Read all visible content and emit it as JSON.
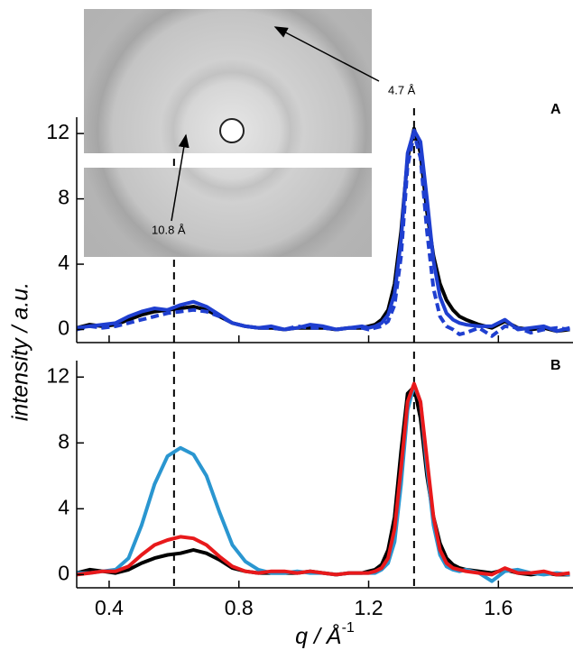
{
  "chart_data": [
    {
      "type": "line",
      "panel_label": "A",
      "ylabel": "intensity / a.u.",
      "annotations": [
        "4.7 Å",
        "10.8 Å"
      ],
      "x": [
        0.3,
        0.34,
        0.38,
        0.42,
        0.46,
        0.5,
        0.54,
        0.58,
        0.62,
        0.66,
        0.7,
        0.74,
        0.78,
        0.82,
        0.86,
        0.9,
        0.94,
        0.98,
        1.02,
        1.06,
        1.1,
        1.14,
        1.18,
        1.2,
        1.22,
        1.24,
        1.26,
        1.28,
        1.3,
        1.32,
        1.34,
        1.36,
        1.38,
        1.4,
        1.42,
        1.44,
        1.46,
        1.48,
        1.5,
        1.54,
        1.58,
        1.62,
        1.66,
        1.7,
        1.74,
        1.78,
        1.82
      ],
      "series": [
        {
          "color": "#000000",
          "dashed": false,
          "values": [
            0.1,
            0.3,
            0.2,
            0.3,
            0.6,
            0.9,
            1.1,
            1.2,
            1.3,
            1.4,
            1.2,
            0.8,
            0.4,
            0.2,
            0.1,
            0.1,
            0.0,
            0.1,
            0.1,
            0.1,
            0.0,
            0.1,
            0.1,
            0.2,
            0.3,
            0.6,
            1.2,
            2.8,
            6.0,
            10.5,
            12.3,
            10.8,
            7.2,
            4.5,
            2.8,
            1.8,
            1.2,
            0.8,
            0.6,
            0.3,
            0.1,
            0.5,
            0.1,
            0.0,
            0.1,
            -0.1,
            0.0
          ]
        },
        {
          "color": "#1f3fd0",
          "dashed": false,
          "values": [
            0.1,
            0.2,
            0.3,
            0.4,
            0.8,
            1.1,
            1.3,
            1.2,
            1.5,
            1.7,
            1.4,
            0.9,
            0.4,
            0.2,
            0.1,
            0.2,
            0.0,
            0.1,
            0.3,
            0.2,
            0.0,
            0.1,
            0.2,
            0.1,
            0.2,
            0.4,
            0.9,
            2.2,
            5.5,
            10.8,
            12.2,
            11.5,
            8.0,
            4.2,
            2.0,
            1.0,
            0.6,
            0.4,
            0.3,
            0.2,
            0.2,
            0.6,
            0.0,
            0.1,
            0.2,
            -0.1,
            0.1
          ]
        },
        {
          "color": "#1f3fd0",
          "dashed": true,
          "values": [
            0.0,
            0.2,
            0.1,
            0.2,
            0.4,
            0.6,
            0.8,
            1.0,
            1.1,
            1.2,
            1.1,
            0.8,
            0.4,
            0.2,
            0.1,
            0.1,
            0.0,
            0.2,
            0.1,
            0.1,
            0.0,
            0.1,
            0.1,
            0.0,
            0.1,
            0.2,
            0.5,
            1.5,
            4.5,
            10.0,
            12.0,
            10.5,
            6.0,
            2.5,
            0.8,
            0.2,
            0.0,
            -0.3,
            -0.2,
            0.1,
            -0.4,
            0.2,
            0.1,
            -0.2,
            0.0,
            0.1,
            0.0
          ]
        }
      ],
      "reference_lines": [
        0.6,
        1.34
      ],
      "xlim": [
        0.3,
        1.83
      ],
      "xticks": [
        0.4,
        0.8,
        1.2,
        1.6
      ],
      "ylim": [
        -0.8,
        13
      ],
      "yticks": [
        0,
        4,
        8,
        12
      ]
    },
    {
      "type": "line",
      "panel_label": "B",
      "xlabel": "q / Å",
      "xlabel_superscript": "-1",
      "x": [
        0.3,
        0.34,
        0.38,
        0.42,
        0.46,
        0.5,
        0.54,
        0.58,
        0.62,
        0.66,
        0.7,
        0.74,
        0.78,
        0.82,
        0.86,
        0.9,
        0.94,
        0.98,
        1.02,
        1.06,
        1.1,
        1.14,
        1.18,
        1.2,
        1.22,
        1.24,
        1.26,
        1.28,
        1.3,
        1.32,
        1.34,
        1.36,
        1.38,
        1.4,
        1.42,
        1.44,
        1.46,
        1.48,
        1.5,
        1.54,
        1.58,
        1.62,
        1.66,
        1.7,
        1.74,
        1.78,
        1.82
      ],
      "series": [
        {
          "color": "#000000",
          "dashed": false,
          "values": [
            0.1,
            0.3,
            0.2,
            0.1,
            0.3,
            0.7,
            1.0,
            1.2,
            1.3,
            1.5,
            1.3,
            0.9,
            0.4,
            0.2,
            0.1,
            0.1,
            0.1,
            0.1,
            0.2,
            0.1,
            0.0,
            0.1,
            0.1,
            0.2,
            0.3,
            0.6,
            1.5,
            3.5,
            7.5,
            11.0,
            11.4,
            9.5,
            6.0,
            3.5,
            1.9,
            1.0,
            0.6,
            0.4,
            0.3,
            0.2,
            0.1,
            0.3,
            0.1,
            0.0,
            0.1,
            0.0,
            0.0
          ]
        },
        {
          "color": "#2a96d0",
          "dashed": false,
          "values": [
            0.1,
            0.1,
            0.2,
            0.3,
            1.0,
            3.0,
            5.5,
            7.2,
            7.7,
            7.3,
            6.0,
            3.8,
            1.8,
            0.8,
            0.3,
            0.1,
            0.1,
            0.2,
            0.1,
            0.1,
            0.0,
            0.1,
            0.1,
            0.1,
            0.1,
            0.3,
            0.7,
            2.0,
            5.5,
            10.0,
            11.5,
            10.5,
            6.5,
            3.0,
            1.2,
            0.5,
            0.3,
            0.2,
            0.3,
            0.1,
            -0.4,
            0.2,
            0.3,
            0.1,
            0.0,
            0.1,
            0.0
          ]
        },
        {
          "color": "#e8191b",
          "dashed": false,
          "values": [
            0.0,
            0.1,
            0.2,
            0.2,
            0.5,
            1.2,
            1.8,
            2.1,
            2.3,
            2.2,
            1.8,
            1.1,
            0.5,
            0.2,
            0.1,
            0.2,
            0.2,
            0.1,
            0.2,
            0.1,
            0.0,
            0.1,
            0.1,
            0.1,
            0.2,
            0.4,
            1.0,
            2.8,
            6.5,
            10.5,
            11.6,
            10.5,
            7.0,
            3.5,
            1.5,
            0.7,
            0.4,
            0.3,
            0.2,
            0.1,
            0.0,
            0.4,
            0.1,
            0.1,
            0.2,
            0.0,
            0.1
          ]
        }
      ],
      "reference_lines": [
        0.6,
        1.34
      ],
      "xlim": [
        0.3,
        1.83
      ],
      "xticks": [
        0.4,
        0.8,
        1.2,
        1.6
      ],
      "ylim": [
        -0.8,
        13
      ],
      "yticks": [
        0,
        4,
        8,
        12
      ]
    }
  ]
}
